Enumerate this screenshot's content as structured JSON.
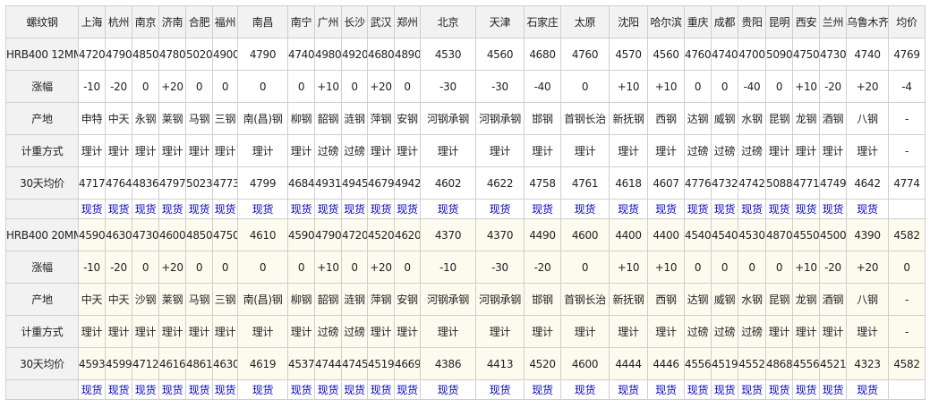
{
  "header": [
    "螺纹钢",
    "上海",
    "杭州",
    "南京",
    "济南",
    "合肥",
    "福州",
    "南昌",
    "南宁",
    "广州",
    "长沙",
    "武汉",
    "郑州",
    "北京",
    "天津",
    "石家庄",
    "太原",
    "沈阳",
    "哈尔滨",
    "重庆",
    "成都",
    "贵阳",
    "昆明",
    "西安",
    "兰州",
    "乌鲁木齐",
    "均价"
  ],
  "row_labels": {
    "change": "涨幅",
    "origin": "产地",
    "weighing": "计重方式",
    "avg30": "30天均价"
  },
  "link_label": "现货",
  "colors": {
    "link": "#0000ee",
    "header_bg": "#f2f2f2",
    "block2_bg": "#fdfbee",
    "border": "#cfcfcf"
  },
  "blocks": [
    {
      "name": "HRB400 12MM",
      "price": [
        "4720",
        "4790",
        "4850",
        "4780",
        "5020",
        "4900",
        "4790",
        "4740",
        "4980",
        "4920",
        "4680",
        "4890",
        "4530",
        "4560",
        "4680",
        "4760",
        "4570",
        "4560",
        "4760",
        "4740",
        "4700",
        "5090",
        "4750",
        "4730",
        "4740",
        "4769"
      ],
      "change": [
        "-10",
        "-20",
        "0",
        "+20",
        "0",
        "0",
        "0",
        "0",
        "+10",
        "0",
        "+20",
        "0",
        "-30",
        "-30",
        "-40",
        "0",
        "+10",
        "+10",
        "0",
        "0",
        "-40",
        "0",
        "+10",
        "-20",
        "+20",
        "-4"
      ],
      "origin": [
        "申特",
        "中天",
        "永钢",
        "莱钢",
        "马钢",
        "三钢",
        "南(昌)钢",
        "柳钢",
        "韶钢",
        "涟钢",
        "萍钢",
        "安钢",
        "河钢承钢",
        "河钢承钢",
        "邯钢",
        "首钢长治",
        "新抚钢",
        "西钢",
        "达钢",
        "威钢",
        "水钢",
        "昆钢",
        "龙钢",
        "酒钢",
        "八钢",
        "-"
      ],
      "weighing": [
        "理计",
        "理计",
        "理计",
        "理计",
        "理计",
        "理计",
        "理计",
        "理计",
        "过磅",
        "过磅",
        "理计",
        "理计",
        "理计",
        "理计",
        "理计",
        "理计",
        "理计",
        "理计",
        "过磅",
        "过磅",
        "过磅",
        "理计",
        "理计",
        "理计",
        "理计",
        "-"
      ],
      "avg30": [
        "4717",
        "4764",
        "4836",
        "4797",
        "5023",
        "4773",
        "4799",
        "4684",
        "4931",
        "4945",
        "4679",
        "4942",
        "4602",
        "4622",
        "4758",
        "4761",
        "4618",
        "4607",
        "4776",
        "4732",
        "4742",
        "5088",
        "4771",
        "4749",
        "4642",
        "4774"
      ]
    },
    {
      "name": "HRB400 20MM",
      "price": [
        "4590",
        "4630",
        "4730",
        "4600",
        "4850",
        "4750",
        "4610",
        "4590",
        "4790",
        "4720",
        "4520",
        "4620",
        "4370",
        "4370",
        "4490",
        "4600",
        "4400",
        "4400",
        "4540",
        "4540",
        "4530",
        "4870",
        "4550",
        "4500",
        "4390",
        "4582"
      ],
      "change": [
        "-10",
        "-20",
        "0",
        "+20",
        "0",
        "0",
        "0",
        "0",
        "+10",
        "0",
        "+20",
        "0",
        "-10",
        "-30",
        "-20",
        "0",
        "+10",
        "+10",
        "0",
        "0",
        "0",
        "0",
        "+10",
        "-20",
        "+20",
        "0"
      ],
      "origin": [
        "中天",
        "中天",
        "沙钢",
        "莱钢",
        "马钢",
        "三钢",
        "南(昌)钢",
        "柳钢",
        "韶钢",
        "涟钢",
        "萍钢",
        "安钢",
        "河钢承钢",
        "河钢承钢",
        "邯钢",
        "首钢长治",
        "新抚钢",
        "西钢",
        "达钢",
        "威钢",
        "水钢",
        "昆钢",
        "龙钢",
        "酒钢",
        "八钢",
        "-"
      ],
      "weighing": [
        "理计",
        "理计",
        "理计",
        "理计",
        "理计",
        "理计",
        "理计",
        "理计",
        "过磅",
        "过磅",
        "理计",
        "理计",
        "理计",
        "理计",
        "理计",
        "理计",
        "理计",
        "理计",
        "过磅",
        "过磅",
        "过磅",
        "理计",
        "理计",
        "理计",
        "理计",
        "-"
      ],
      "avg30": [
        "4593",
        "4599",
        "4712",
        "4616",
        "4861",
        "4630",
        "4619",
        "4537",
        "4744",
        "4745",
        "4519",
        "4669",
        "4386",
        "4413",
        "4520",
        "4600",
        "4444",
        "4446",
        "4556",
        "4519",
        "4552",
        "4868",
        "4556",
        "4521",
        "4323",
        "4582"
      ]
    }
  ]
}
